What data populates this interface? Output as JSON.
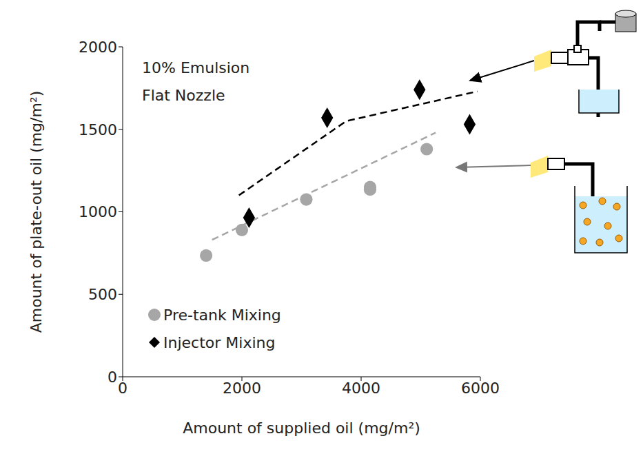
{
  "chart_data": {
    "type": "scatter",
    "annotations": [
      "10% Emulsion",
      "Flat Nozzle"
    ],
    "x_label": "Amount of supplied oil (mg/m²)",
    "y_label": "Amount of plate-out oil (mg/m²)",
    "xlim": [
      0,
      6000
    ],
    "xticks": [
      0,
      2000,
      4000,
      6000
    ],
    "ylim": [
      0,
      2000
    ],
    "yticks": [
      0,
      500,
      1000,
      1500,
      2000
    ],
    "grid": false,
    "legend": "bottom-left",
    "series": [
      {
        "name": "Pre-tank Mixing",
        "type": "scatter",
        "marker": "circle",
        "color": "#a6a6a6",
        "x": [
          1400,
          2000,
          3080,
          4150,
          4150,
          5100
        ],
        "values": [
          735,
          890,
          1075,
          1150,
          1135,
          1380
        ]
      },
      {
        "name": "Injector Mixing",
        "type": "scatter",
        "marker": "diamond",
        "color": "#000000",
        "x": [
          2120,
          3430,
          4980,
          5820
        ],
        "values": [
          965,
          1570,
          1740,
          1530
        ]
      },
      {
        "type": "line",
        "line_style": "dashed",
        "marker": "none",
        "color": "#000000",
        "x": [
          1950,
          3750,
          5950
        ],
        "values": [
          1100,
          1550,
          1730
        ]
      },
      {
        "type": "line",
        "line_style": "dashed",
        "marker": "none",
        "color": "#a6a6a6",
        "x": [
          1500,
          5250
        ],
        "values": [
          830,
          1480
        ]
      }
    ]
  }
}
